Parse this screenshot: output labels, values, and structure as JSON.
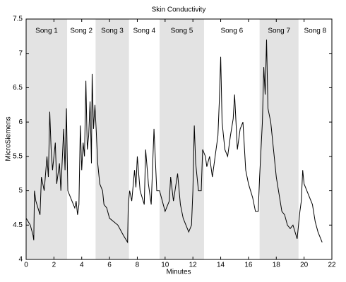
{
  "chart_data": {
    "type": "line",
    "title": "Skin Conductivity",
    "xlabel": "Minutes",
    "ylabel": "MicroSiemens",
    "xlim": [
      0,
      22
    ],
    "ylim": [
      4,
      7.5
    ],
    "xticks": [
      0,
      2,
      4,
      6,
      8,
      10,
      12,
      14,
      16,
      18,
      20,
      22
    ],
    "yticks": [
      4,
      4.5,
      5,
      5.5,
      6,
      6.5,
      7,
      7.5
    ],
    "color": "#000000",
    "band_color": "#e3e3e3",
    "bands": [
      {
        "name": "Song 1",
        "start": 0,
        "end": 2.95,
        "shaded": true
      },
      {
        "name": "Song 2",
        "start": 2.95,
        "end": 5,
        "shaded": false
      },
      {
        "name": "Song 3",
        "start": 5,
        "end": 7.4,
        "shaded": true
      },
      {
        "name": "Song 4",
        "start": 7.4,
        "end": 9.6,
        "shaded": false
      },
      {
        "name": "Song 5",
        "start": 9.6,
        "end": 12.8,
        "shaded": true
      },
      {
        "name": "Song 6",
        "start": 12.8,
        "end": 16.8,
        "shaded": false
      },
      {
        "name": "Song 7",
        "start": 16.8,
        "end": 19.6,
        "shaded": true
      },
      {
        "name": "Song 8",
        "start": 19.6,
        "end": 22,
        "shaded": false
      }
    ],
    "x": [
      0,
      0.3,
      0.5,
      0.55,
      0.6,
      0.7,
      1.0,
      1.1,
      1.3,
      1.5,
      1.6,
      1.7,
      1.8,
      1.9,
      2.1,
      2.2,
      2.4,
      2.5,
      2.7,
      2.8,
      2.9,
      3.0,
      3.2,
      3.4,
      3.5,
      3.6,
      3.7,
      3.8,
      3.9,
      4.0,
      4.1,
      4.2,
      4.3,
      4.4,
      4.5,
      4.6,
      4.7,
      4.75,
      4.85,
      4.95,
      5.05,
      5.15,
      5.3,
      5.5,
      5.6,
      5.8,
      6.0,
      6.3,
      6.6,
      7.0,
      7.3,
      7.35,
      7.45,
      7.6,
      7.8,
      7.9,
      8.0,
      8.2,
      8.5,
      8.6,
      8.8,
      9.0,
      9.2,
      9.4,
      9.6,
      9.8,
      10.0,
      10.3,
      10.4,
      10.6,
      10.9,
      11.1,
      11.3,
      11.5,
      11.7,
      11.9,
      12.0,
      12.1,
      12.2,
      12.4,
      12.6,
      12.7,
      12.9,
      13.0,
      13.2,
      13.4,
      13.6,
      13.8,
      13.9,
      14.0,
      14.1,
      14.3,
      14.5,
      14.7,
      14.9,
      15.0,
      15.2,
      15.4,
      15.6,
      15.8,
      16.0,
      16.3,
      16.5,
      16.7,
      16.8,
      17.0,
      17.1,
      17.2,
      17.3,
      17.4,
      17.6,
      17.8,
      18.0,
      18.2,
      18.4,
      18.6,
      18.8,
      19.0,
      19.2,
      19.5,
      19.7,
      19.8,
      19.9,
      20.0,
      20.2,
      20.4,
      20.6,
      20.8,
      21.0,
      21.3
    ],
    "values": [
      4.6,
      4.5,
      4.35,
      4.28,
      5.0,
      4.85,
      4.65,
      5.2,
      5.0,
      5.5,
      5.2,
      6.15,
      5.6,
      5.3,
      5.7,
      5.1,
      5.4,
      5.0,
      5.9,
      5.3,
      6.2,
      5.0,
      4.9,
      4.8,
      4.75,
      4.85,
      4.65,
      4.8,
      5.95,
      5.3,
      5.7,
      5.5,
      6.6,
      5.6,
      5.8,
      6.3,
      5.4,
      6.7,
      5.9,
      6.25,
      5.85,
      5.4,
      5.1,
      5.0,
      4.8,
      4.75,
      4.6,
      4.55,
      4.5,
      4.35,
      4.25,
      4.8,
      5.0,
      4.85,
      5.3,
      5.05,
      5.5,
      5.0,
      4.8,
      5.6,
      5.1,
      4.8,
      5.9,
      5.0,
      5.0,
      4.85,
      4.7,
      4.85,
      5.2,
      4.85,
      5.25,
      4.8,
      4.6,
      4.5,
      4.4,
      4.5,
      5.0,
      5.95,
      5.4,
      5.0,
      5.0,
      5.6,
      5.5,
      5.35,
      5.5,
      5.2,
      5.5,
      5.8,
      6.3,
      6.95,
      6.0,
      5.6,
      5.5,
      5.8,
      6.05,
      6.4,
      5.6,
      5.9,
      6.0,
      5.3,
      5.1,
      4.9,
      4.7,
      4.7,
      5.2,
      6.0,
      6.8,
      6.4,
      7.2,
      6.2,
      6.0,
      5.6,
      5.2,
      4.95,
      4.7,
      4.65,
      4.5,
      4.45,
      4.5,
      4.3,
      4.7,
      4.85,
      5.3,
      5.1,
      5.0,
      4.9,
      4.8,
      4.55,
      4.4,
      4.25
    ]
  }
}
